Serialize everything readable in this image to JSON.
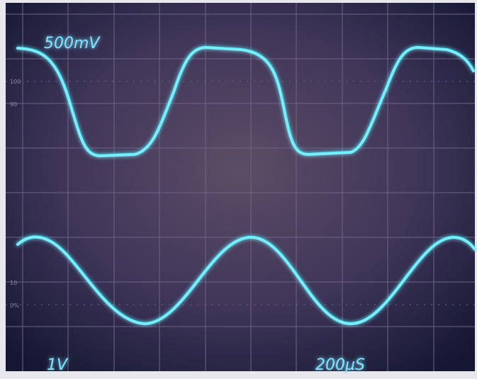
{
  "screen": {
    "ch1_scale": "500mV",
    "ch2_scale": "1V",
    "timebase": "200µS"
  },
  "graticule_marks": [
    "100",
    "90",
    "10",
    "0%"
  ]
}
